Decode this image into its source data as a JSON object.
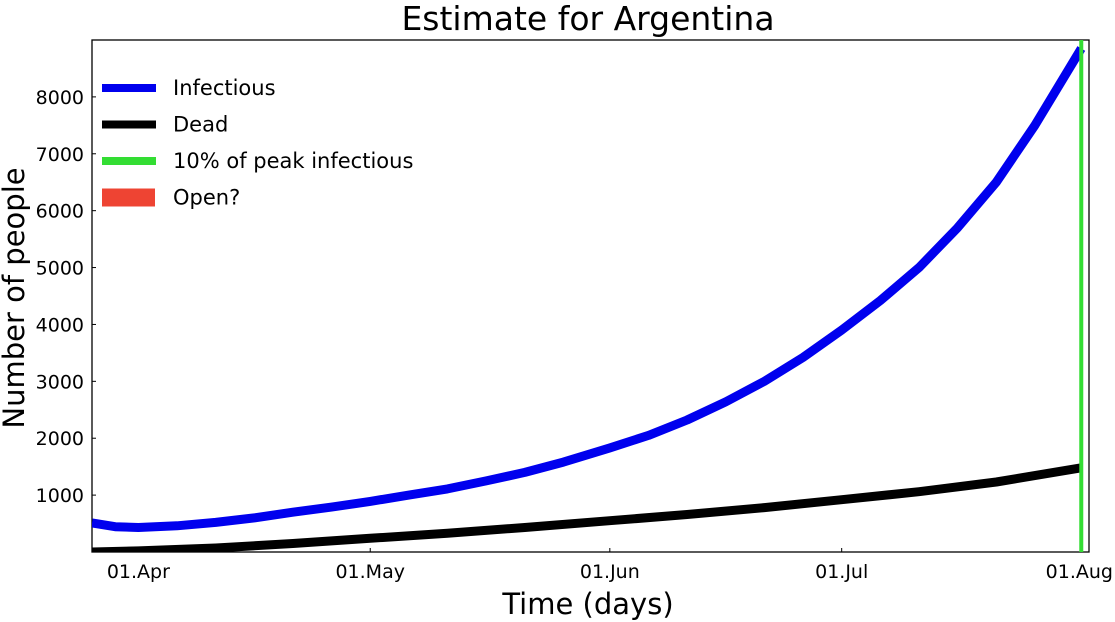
{
  "chart_data": {
    "type": "line",
    "title": "Estimate for Argentina",
    "xlabel": "Time (days)",
    "ylabel": "Number of people",
    "x_ticks": [
      {
        "date": "2020-04-01",
        "label": "01.Apr"
      },
      {
        "date": "2020-05-01",
        "label": "01.May"
      },
      {
        "date": "2020-06-01",
        "label": "01.Jun"
      },
      {
        "date": "2020-07-01",
        "label": "01.Jul"
      },
      {
        "date": "2020-08-01",
        "label": "01.Aug"
      }
    ],
    "y_ticks": [
      1000,
      2000,
      3000,
      4000,
      5000,
      6000,
      7000,
      8000
    ],
    "xlim": [
      "2020-03-26",
      "2020-08-02"
    ],
    "ylim": [
      0,
      9000
    ],
    "grid": false,
    "legend_position": "top-left",
    "series": [
      {
        "name": "Infectious",
        "color": "#0000ee",
        "points": [
          [
            "2020-03-26",
            510
          ],
          [
            "2020-03-29",
            445
          ],
          [
            "2020-04-01",
            430
          ],
          [
            "2020-04-06",
            460
          ],
          [
            "2020-04-11",
            520
          ],
          [
            "2020-04-16",
            600
          ],
          [
            "2020-04-21",
            700
          ],
          [
            "2020-04-26",
            790
          ],
          [
            "2020-05-01",
            890
          ],
          [
            "2020-05-06",
            1000
          ],
          [
            "2020-05-11",
            1110
          ],
          [
            "2020-05-16",
            1250
          ],
          [
            "2020-05-21",
            1400
          ],
          [
            "2020-05-26",
            1580
          ],
          [
            "2020-06-01",
            1830
          ],
          [
            "2020-06-06",
            2050
          ],
          [
            "2020-06-11",
            2320
          ],
          [
            "2020-06-16",
            2640
          ],
          [
            "2020-06-21",
            3000
          ],
          [
            "2020-06-26",
            3420
          ],
          [
            "2020-07-01",
            3900
          ],
          [
            "2020-07-06",
            4420
          ],
          [
            "2020-07-11",
            5000
          ],
          [
            "2020-07-16",
            5700
          ],
          [
            "2020-07-21",
            6500
          ],
          [
            "2020-07-26",
            7500
          ],
          [
            "2020-08-01",
            8850
          ]
        ]
      },
      {
        "name": "Dead",
        "color": "#000000",
        "points": [
          [
            "2020-03-26",
            0
          ],
          [
            "2020-04-01",
            20
          ],
          [
            "2020-04-11",
            70
          ],
          [
            "2020-04-21",
            150
          ],
          [
            "2020-05-01",
            240
          ],
          [
            "2020-05-11",
            330
          ],
          [
            "2020-05-21",
            430
          ],
          [
            "2020-06-01",
            550
          ],
          [
            "2020-06-11",
            660
          ],
          [
            "2020-06-21",
            780
          ],
          [
            "2020-07-01",
            920
          ],
          [
            "2020-07-11",
            1060
          ],
          [
            "2020-07-21",
            1230
          ],
          [
            "2020-08-01",
            1480
          ]
        ]
      }
    ],
    "vline": {
      "name": "10% of peak infectious",
      "color": "#33dd33",
      "date": "2020-08-01"
    },
    "legend": [
      {
        "label": "Infectious",
        "color": "#0000ee",
        "style": "line"
      },
      {
        "label": "Dead",
        "color": "#000000",
        "style": "line"
      },
      {
        "label": "10% of peak infectious",
        "color": "#33dd33",
        "style": "line"
      },
      {
        "label": "Open?",
        "color": "#ee4433",
        "style": "patch"
      }
    ]
  }
}
